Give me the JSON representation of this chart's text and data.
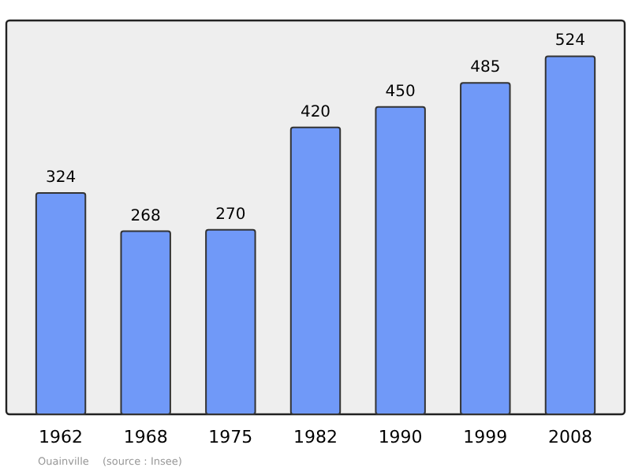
{
  "chart_data": {
    "type": "bar",
    "categories": [
      "1962",
      "1968",
      "1975",
      "1982",
      "1990",
      "1999",
      "2008"
    ],
    "values": [
      324,
      268,
      270,
      420,
      450,
      485,
      524
    ],
    "color": "#7099f8",
    "data_labels": true,
    "annotations": [
      "Ouainville",
      "(source : Insee)"
    ]
  }
}
